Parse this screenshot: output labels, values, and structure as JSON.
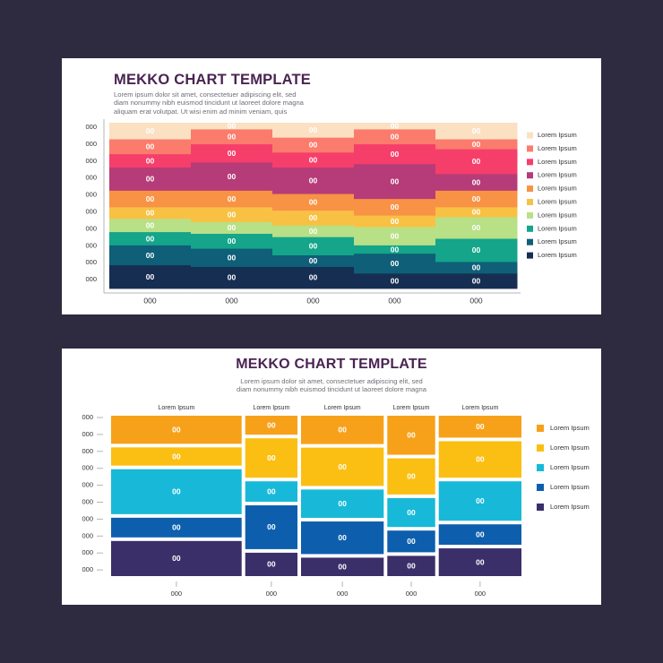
{
  "palette": {
    "background": "#2e2a40",
    "panel": "#ffffff",
    "title": "#4a2452",
    "text": "#6f6f78",
    "axis": "#b5b5b5",
    "segment_label": "#ffffff"
  },
  "chart_data": [
    {
      "type": "mekko",
      "title": "MEKKO CHART TEMPLATE",
      "description": [
        "Lorem ipsum dolor sit amet, consectetuer adipiscing elit, sed",
        "diam nonummy nibh euismod tincidunt ut laoreet dolore magna",
        "aliquam erat volutpat. Ut wisi enim ad minim veniam, quis"
      ],
      "y_ticks": [
        "000",
        "000",
        "000",
        "000",
        "000",
        "000",
        "000",
        "000",
        "000",
        "000"
      ],
      "x_labels": [
        "000",
        "000",
        "000",
        "000",
        "000"
      ],
      "column_widths": [
        1,
        1,
        1,
        1,
        1
      ],
      "series": [
        {
          "name": "Lorem Ipsum",
          "color": "#fbe0c2",
          "values": [
            10,
            4,
            9,
            4,
            10
          ]
        },
        {
          "name": "Lorem Ipsum",
          "color": "#fb7c6c",
          "values": [
            9,
            9,
            9,
            9,
            6
          ]
        },
        {
          "name": "Lorem Ipsum",
          "color": "#f63e6a",
          "values": [
            8,
            11,
            9,
            12,
            15
          ]
        },
        {
          "name": "Lorem Ipsum",
          "color": "#b53c78",
          "values": [
            14,
            17,
            16,
            21,
            10
          ]
        },
        {
          "name": "Lorem Ipsum",
          "color": "#f89245",
          "values": [
            10,
            10,
            10,
            10,
            10
          ]
        },
        {
          "name": "Lorem Ipsum",
          "color": "#f8c144",
          "values": [
            7,
            9,
            9,
            7,
            6
          ]
        },
        {
          "name": "Lorem Ipsum",
          "color": "#b8e086",
          "values": [
            8,
            7,
            7,
            11,
            13
          ]
        },
        {
          "name": "Lorem Ipsum",
          "color": "#14a58a",
          "values": [
            8,
            9,
            11,
            5,
            14
          ]
        },
        {
          "name": "Lorem Ipsum",
          "color": "#0f5f78",
          "values": [
            12,
            11,
            7,
            12,
            7
          ]
        },
        {
          "name": "Lorem Ipsum",
          "color": "#162e52",
          "values": [
            14,
            13,
            13,
            9,
            9
          ]
        }
      ],
      "segment_label": "00",
      "legend_position": "right"
    },
    {
      "type": "mekko",
      "title": "MEKKO CHART TEMPLATE",
      "description": [
        "Lorem ipsum dolor sit amet, consectetuer adipiscing elit, sed",
        "diam nonummy nibh euismod tincidunt ut laoreet dolore magna"
      ],
      "y_ticks": [
        "000",
        "000",
        "000",
        "000",
        "000",
        "000",
        "000",
        "000",
        "000",
        "000"
      ],
      "column_headers": [
        "Lorem Ipsum",
        "Lorem Ipsum",
        "Lorem Ipsum",
        "Lorem Ipsum",
        "Lorem Ipsum"
      ],
      "x_labels": [
        "000",
        "000",
        "000",
        "000",
        "000"
      ],
      "column_widths": [
        30,
        12,
        19,
        11,
        19
      ],
      "series": [
        {
          "name": "Lorem Ipsum",
          "color": "#f7a11a",
          "values": [
            20,
            13,
            20,
            27,
            15
          ]
        },
        {
          "name": "Lorem Ipsum",
          "color": "#fbbf13",
          "values": [
            13,
            27,
            27,
            25,
            25
          ]
        },
        {
          "name": "Lorem Ipsum",
          "color": "#18b9d8",
          "values": [
            32,
            14,
            20,
            20,
            27
          ]
        },
        {
          "name": "Lorem Ipsum",
          "color": "#0d5fae",
          "values": [
            14,
            30,
            23,
            15,
            14
          ]
        },
        {
          "name": "Lorem Ipsum",
          "color": "#3b2f6a",
          "values": [
            25,
            16,
            13,
            14,
            19
          ]
        }
      ],
      "segment_label": "00",
      "legend_position": "right"
    }
  ]
}
